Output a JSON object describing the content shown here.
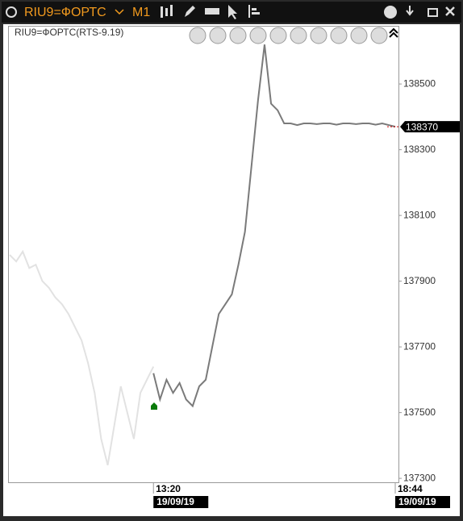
{
  "toolbar": {
    "symbol": "RIU9=ФОРТС",
    "timeframe": "M1"
  },
  "chart_data": {
    "type": "line",
    "title": "RIU9=ФОРТС(RTS-9.19)",
    "categories": [
      null,
      null,
      null,
      null,
      null,
      null,
      null,
      null,
      null,
      null,
      null,
      null,
      null,
      null,
      null,
      null,
      null,
      null,
      null,
      null,
      null,
      null,
      "13:20",
      null,
      null,
      null,
      null,
      null,
      null,
      null,
      null,
      null,
      null,
      null,
      null,
      null,
      null,
      null,
      null,
      null,
      null,
      null,
      null,
      null,
      null,
      null,
      null,
      null,
      null,
      null,
      null,
      null,
      null,
      null,
      null,
      null,
      null,
      null,
      null,
      "18:44"
    ],
    "dates": [
      "19/09/19",
      "19/09/19"
    ],
    "series": [
      {
        "color": "#e2e2e2",
        "values": [
          137980,
          137960,
          137990,
          137940,
          137950,
          137900,
          137880,
          137850,
          137830,
          137800,
          137760,
          137720,
          137650,
          137560,
          137420,
          137340,
          137460,
          137580,
          137500,
          137420,
          137560,
          137600,
          137640,
          null,
          null,
          null,
          null,
          null,
          null,
          null,
          null,
          null,
          null,
          null,
          null,
          null,
          null,
          null,
          null,
          null,
          null,
          null,
          null,
          null,
          null,
          null,
          null,
          null,
          null,
          null,
          null,
          null,
          null,
          null,
          null,
          null,
          null,
          null,
          null,
          null
        ]
      },
      {
        "color": "#7a7a7a",
        "values": [
          null,
          null,
          null,
          null,
          null,
          null,
          null,
          null,
          null,
          null,
          null,
          null,
          null,
          null,
          null,
          null,
          null,
          null,
          null,
          null,
          null,
          null,
          137620,
          137540,
          137600,
          137560,
          137590,
          137540,
          137520,
          137580,
          137600,
          137700,
          137800,
          137830,
          137860,
          137950,
          138050,
          138250,
          138450,
          138620,
          138440,
          138420,
          138380,
          138380,
          138375,
          138380,
          138380,
          138378,
          138380,
          138380,
          138376,
          138380,
          138380,
          138378,
          138380,
          138380,
          138376,
          138380,
          138375,
          138370
        ]
      }
    ],
    "last_price": 138370,
    "ylim": [
      137288,
      138677
    ],
    "yticks": [
      137300,
      137500,
      137700,
      137900,
      138100,
      138300,
      138500
    ]
  }
}
